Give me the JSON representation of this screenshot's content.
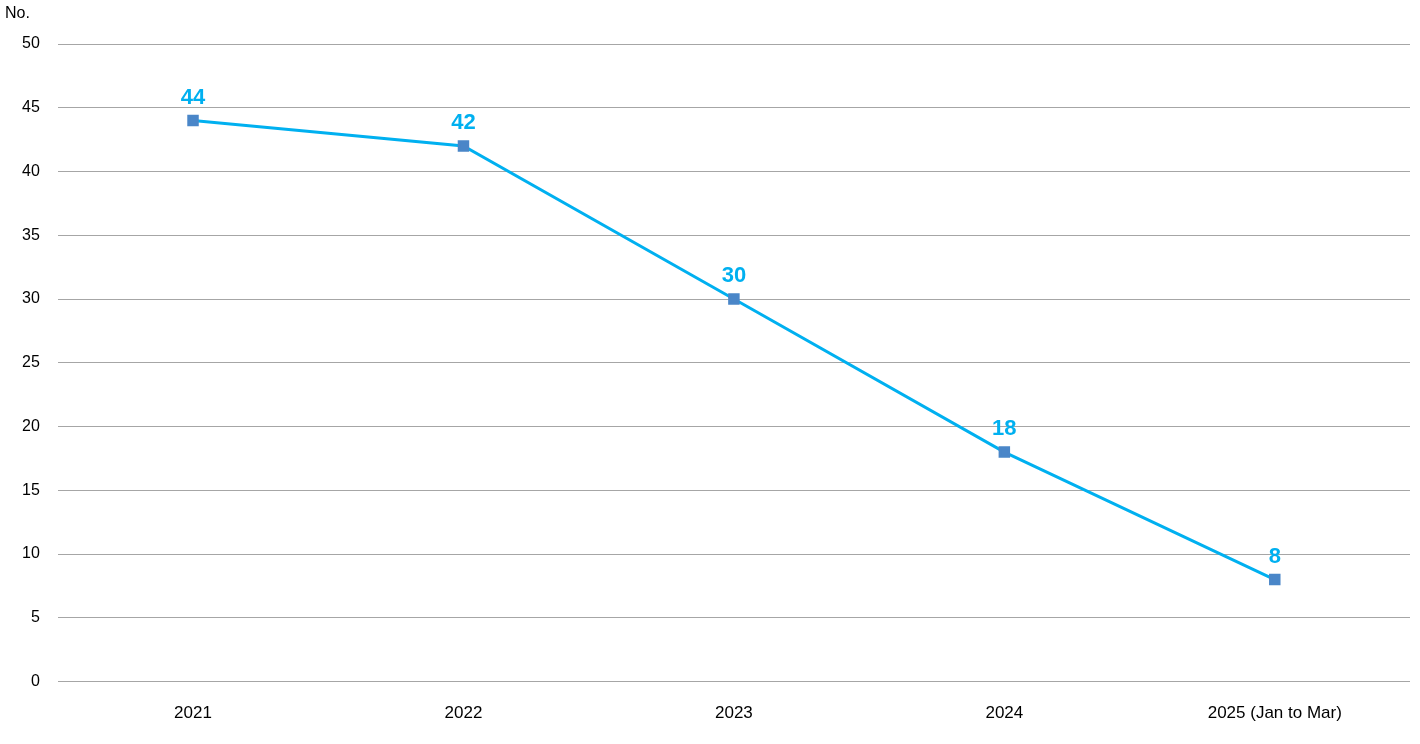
{
  "chart_data": {
    "type": "line",
    "y_label": "No.",
    "categories": [
      "2021",
      "2022",
      "2023",
      "2024",
      "2025 (Jan to Mar)"
    ],
    "values": [
      44,
      42,
      30,
      18,
      8
    ],
    "color": "#00b0f0",
    "marker": "square",
    "ylim": [
      0,
      50
    ],
    "yticks": [
      0,
      5,
      10,
      15,
      20,
      25,
      30,
      35,
      40,
      45,
      50
    ],
    "grid": true,
    "data_labels": true
  }
}
